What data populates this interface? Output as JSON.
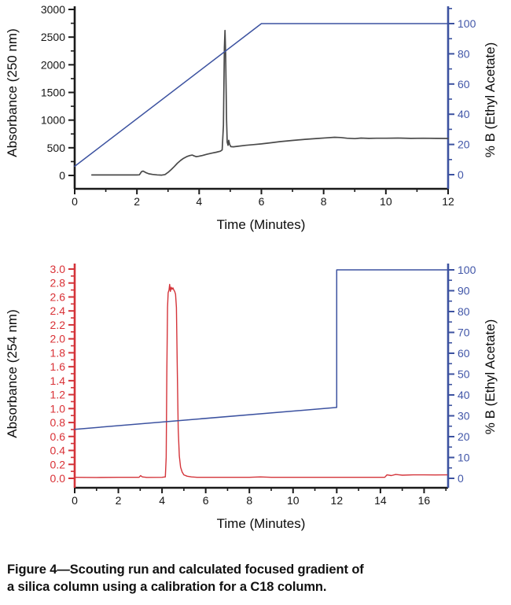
{
  "page": {
    "background": "#ffffff"
  },
  "colors": {
    "blue": "#3C52A0",
    "blue_label": "#4156A8",
    "red": "#D4343A",
    "red_label": "#D93035",
    "black_trace": "#4A4A4A",
    "axis_black": "#1A1A1A",
    "text_black": "#151515"
  },
  "caption": {
    "lines": [
      "Figure 4—Scouting run and calculated focused gradient of",
      "a silica column using a calibration for a C18 column."
    ]
  },
  "chart_data": [
    {
      "name": "scouting-run",
      "type": "line",
      "title": "",
      "xlabel": "Time (Minutes)",
      "ylabel_left": "Absorbance (250 nm)",
      "ylabel_right": "% B (Ethyl Acetate)",
      "xlim": [
        0,
        12
      ],
      "ylim_left": [
        0,
        3000
      ],
      "ylim_right": [
        0,
        100
      ],
      "grid": false,
      "legend": "none",
      "left_axis_color": "axis_black",
      "left_label_color": "text_black",
      "right_axis_color": "blue",
      "right_label_color": "blue_label",
      "x_ticks": {
        "major": [
          0,
          2,
          4,
          6,
          8,
          10,
          12
        ],
        "labels": [
          "0",
          "2",
          "4",
          "6",
          "8",
          "10",
          "12"
        ],
        "minor": [
          1,
          3,
          5,
          7,
          9,
          11
        ]
      },
      "yleft_ticks": {
        "major": [
          0,
          500,
          1000,
          1500,
          2000,
          2500,
          3000
        ],
        "labels": [
          "0",
          "500",
          "1000",
          "1500",
          "2000",
          "2500",
          "3000"
        ],
        "minor": [
          250,
          750,
          1250,
          1750,
          2250,
          2750
        ]
      },
      "yright_ticks": {
        "major": [
          0,
          20,
          40,
          60,
          80,
          100
        ],
        "labels": [
          "0",
          "20",
          "40",
          "60",
          "80",
          "100"
        ],
        "minor": [
          10,
          30,
          50,
          70,
          90,
          110
        ]
      },
      "series": [
        {
          "name": "absorbance-250nm-trace",
          "axis": "left",
          "color": "black_trace",
          "width": 1.7,
          "points": [
            [
              0.55,
              8
            ],
            [
              1.0,
              8
            ],
            [
              1.5,
              8
            ],
            [
              2.0,
              8
            ],
            [
              2.08,
              12
            ],
            [
              2.15,
              70
            ],
            [
              2.2,
              78
            ],
            [
              2.28,
              52
            ],
            [
              2.38,
              30
            ],
            [
              2.5,
              18
            ],
            [
              2.65,
              10
            ],
            [
              2.8,
              6
            ],
            [
              2.9,
              15
            ],
            [
              3.0,
              55
            ],
            [
              3.1,
              105
            ],
            [
              3.2,
              160
            ],
            [
              3.3,
              220
            ],
            [
              3.4,
              270
            ],
            [
              3.5,
              310
            ],
            [
              3.6,
              340
            ],
            [
              3.7,
              360
            ],
            [
              3.78,
              368
            ],
            [
              3.84,
              352
            ],
            [
              3.9,
              340
            ],
            [
              3.98,
              345
            ],
            [
              4.1,
              360
            ],
            [
              4.25,
              382
            ],
            [
              4.4,
              402
            ],
            [
              4.55,
              420
            ],
            [
              4.68,
              438
            ],
            [
              4.74,
              460
            ],
            [
              4.78,
              900
            ],
            [
              4.81,
              2300
            ],
            [
              4.83,
              2620
            ],
            [
              4.85,
              2200
            ],
            [
              4.88,
              1000
            ],
            [
              4.9,
              600
            ],
            [
              4.93,
              545
            ],
            [
              4.95,
              635
            ],
            [
              4.98,
              560
            ],
            [
              5.02,
              520
            ],
            [
              5.1,
              518
            ],
            [
              5.25,
              528
            ],
            [
              5.5,
              545
            ],
            [
              5.75,
              558
            ],
            [
              6.0,
              570
            ],
            [
              6.3,
              590
            ],
            [
              6.6,
              612
            ],
            [
              7.0,
              632
            ],
            [
              7.4,
              652
            ],
            [
              7.8,
              668
            ],
            [
              8.1,
              680
            ],
            [
              8.35,
              690
            ],
            [
              8.55,
              686
            ],
            [
              8.75,
              672
            ],
            [
              9.0,
              666
            ],
            [
              9.2,
              676
            ],
            [
              9.45,
              670
            ],
            [
              9.7,
              673
            ],
            [
              10.0,
              672
            ],
            [
              10.4,
              676
            ],
            [
              10.8,
              670
            ],
            [
              11.2,
              672
            ],
            [
              11.6,
              670
            ],
            [
              12.0,
              668
            ]
          ]
        },
        {
          "name": "gradient-percent-b",
          "axis": "right",
          "color": "blue",
          "width": 1.5,
          "points": [
            [
              0,
              5.5
            ],
            [
              6.0,
              100
            ],
            [
              12,
              100
            ]
          ]
        }
      ]
    },
    {
      "name": "focused-gradient",
      "type": "line",
      "title": "",
      "xlabel": "Time (Minutes)",
      "ylabel_left": "Absorbance (254 nm)",
      "ylabel_right": "% B (Ethyl Acetate)",
      "xlim": [
        0,
        17.1
      ],
      "ylim_left": [
        0,
        3.0
      ],
      "ylim_right": [
        0,
        100
      ],
      "grid": false,
      "legend": "none",
      "left_axis_color": "red",
      "left_label_color": "red_label",
      "right_axis_color": "blue",
      "right_label_color": "blue_label",
      "x_ticks": {
        "major": [
          0,
          2,
          4,
          6,
          8,
          10,
          12,
          14,
          16
        ],
        "labels": [
          "0",
          "2",
          "4",
          "6",
          "8",
          "10",
          "12",
          "14",
          "16"
        ],
        "minor": [
          1,
          3,
          5,
          7,
          9,
          11,
          13,
          15,
          17
        ]
      },
      "yleft_ticks": {
        "major": [
          0,
          0.2,
          0.4,
          0.6,
          0.8,
          1.0,
          1.2,
          1.4,
          1.6,
          1.8,
          2.0,
          2.2,
          2.4,
          2.6,
          2.8,
          3.0
        ],
        "labels": [
          "0.0",
          "0.2",
          "0.4",
          "0.6",
          "0.8",
          "1.0",
          "1.2",
          "1.4",
          "1.6",
          "1.8",
          "2.0",
          "2.2",
          "2.4",
          "2.6",
          "2.8",
          "3.0"
        ],
        "minor": [
          0.1,
          0.3,
          0.5,
          0.7,
          0.9,
          1.1,
          1.3,
          1.5,
          1.7,
          1.9,
          2.1,
          2.3,
          2.5,
          2.7,
          2.9
        ]
      },
      "yright_ticks": {
        "major": [
          0,
          10,
          20,
          30,
          40,
          50,
          60,
          70,
          80,
          90,
          100
        ],
        "labels": [
          "0",
          "10",
          "20",
          "30",
          "40",
          "50",
          "60",
          "70",
          "80",
          "90",
          "100"
        ],
        "minor": [
          5,
          15,
          25,
          35,
          45,
          55,
          65,
          75,
          85,
          95
        ]
      },
      "series": [
        {
          "name": "absorbance-254nm-trace",
          "axis": "left",
          "color": "red",
          "width": 1.4,
          "points": [
            [
              0,
              0.015
            ],
            [
              1.0,
              0.012
            ],
            [
              2.0,
              0.015
            ],
            [
              2.95,
              0.015
            ],
            [
              3.02,
              0.04
            ],
            [
              3.1,
              0.02
            ],
            [
              3.3,
              0.013
            ],
            [
              4.0,
              0.015
            ],
            [
              4.15,
              0.02
            ],
            [
              4.19,
              0.3
            ],
            [
              4.22,
              1.5
            ],
            [
              4.25,
              2.45
            ],
            [
              4.28,
              2.66
            ],
            [
              4.32,
              2.7
            ],
            [
              4.35,
              2.78
            ],
            [
              4.38,
              2.68
            ],
            [
              4.42,
              2.74
            ],
            [
              4.46,
              2.71
            ],
            [
              4.5,
              2.73
            ],
            [
              4.54,
              2.7
            ],
            [
              4.58,
              2.68
            ],
            [
              4.62,
              2.64
            ],
            [
              4.66,
              2.45
            ],
            [
              4.7,
              1.5
            ],
            [
              4.74,
              0.7
            ],
            [
              4.79,
              0.32
            ],
            [
              4.85,
              0.16
            ],
            [
              4.92,
              0.09
            ],
            [
              5.0,
              0.05
            ],
            [
              5.15,
              0.03
            ],
            [
              5.35,
              0.02
            ],
            [
              5.6,
              0.015
            ],
            [
              6.5,
              0.015
            ],
            [
              8.0,
              0.015
            ],
            [
              8.5,
              0.02
            ],
            [
              9.0,
              0.015
            ],
            [
              10.0,
              0.015
            ],
            [
              12.0,
              0.015
            ],
            [
              14.2,
              0.015
            ],
            [
              14.3,
              0.05
            ],
            [
              14.5,
              0.04
            ],
            [
              14.7,
              0.055
            ],
            [
              15.0,
              0.045
            ],
            [
              15.5,
              0.05
            ],
            [
              16.0,
              0.05
            ],
            [
              16.5,
              0.048
            ],
            [
              17.05,
              0.05
            ]
          ]
        },
        {
          "name": "gradient-percent-b",
          "axis": "right",
          "color": "blue",
          "width": 1.5,
          "points": [
            [
              0,
              23.5
            ],
            [
              12,
              34
            ],
            [
              12,
              100
            ],
            [
              17.05,
              100
            ]
          ]
        }
      ]
    }
  ]
}
